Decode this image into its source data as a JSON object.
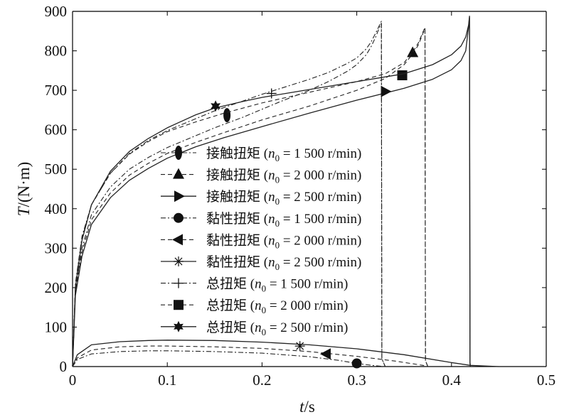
{
  "chart_data": {
    "type": "line",
    "title": "",
    "xlabel": {
      "main": "t",
      "unit": "/s"
    },
    "ylabel": {
      "main": "T",
      "unit": "/(N·m)"
    },
    "xlim": [
      0,
      0.5
    ],
    "ylim": [
      0,
      900
    ],
    "xticks": [
      0,
      0.1,
      0.2,
      0.3,
      0.4,
      0.5
    ],
    "xtick_labels": [
      "0",
      "0.1",
      "0.2",
      "0.3",
      "0.4",
      "0.5"
    ],
    "yticks": [
      0,
      100,
      200,
      300,
      400,
      500,
      600,
      700,
      800,
      900
    ],
    "ytick_labels": [
      "0",
      "100",
      "200",
      "300",
      "400",
      "500",
      "600",
      "700",
      "800",
      "900"
    ],
    "grid": false,
    "legend_position": "center",
    "series": [
      {
        "legend": {
          "prefix": "接触扭矩 (",
          "var": "n",
          "sub": "0",
          "rest": " = 1 500 r/min)"
        },
        "marker": "ellipse",
        "dash": "7 3 2 3",
        "width": 1.1,
        "color": "#222222",
        "marker_x": 0.163,
        "marker_y": 637,
        "x": [
          0,
          0.003,
          0.01,
          0.02,
          0.04,
          0.06,
          0.08,
          0.1,
          0.12,
          0.15,
          0.18,
          0.2,
          0.22,
          0.25,
          0.27,
          0.29,
          0.3,
          0.31,
          0.315,
          0.32,
          0.324,
          0.326,
          0.3265,
          0.33
        ],
        "y": [
          0,
          195,
          300,
          385,
          455,
          500,
          530,
          555,
          575,
          605,
          632,
          652,
          672,
          700,
          722,
          748,
          765,
          790,
          810,
          835,
          860,
          870,
          20,
          0
        ]
      },
      {
        "legend": {
          "prefix": "接触扭矩 (",
          "var": "n",
          "sub": "0",
          "rest": " = 2 000 r/min)"
        },
        "marker": "triangle-up",
        "dash": "6 4",
        "width": 1.1,
        "color": "#222222",
        "marker_x": 0.359,
        "marker_y": 795,
        "x": [
          0,
          0.003,
          0.01,
          0.02,
          0.04,
          0.06,
          0.08,
          0.1,
          0.13,
          0.16,
          0.2,
          0.25,
          0.3,
          0.33,
          0.35,
          0.36,
          0.365,
          0.37,
          0.372,
          0.3725,
          0.375
        ],
        "y": [
          0,
          188,
          290,
          372,
          440,
          485,
          515,
          540,
          568,
          593,
          625,
          660,
          700,
          730,
          765,
          795,
          815,
          845,
          855,
          15,
          0
        ]
      },
      {
        "legend": {
          "prefix": "接触扭矩 (",
          "var": "n",
          "sub": "0",
          "rest": " = 2 500 r/min)"
        },
        "marker": "triangle-right",
        "dash": "",
        "width": 1.3,
        "color": "#222222",
        "marker_x": 0.33,
        "marker_y": 697,
        "x": [
          0,
          0.003,
          0.01,
          0.02,
          0.04,
          0.06,
          0.08,
          0.1,
          0.13,
          0.16,
          0.2,
          0.25,
          0.3,
          0.35,
          0.38,
          0.4,
          0.41,
          0.415,
          0.418,
          0.419,
          0.4195,
          0.42
        ],
        "y": [
          0,
          180,
          280,
          360,
          428,
          472,
          502,
          528,
          557,
          580,
          608,
          642,
          675,
          705,
          728,
          752,
          775,
          800,
          860,
          885,
          10,
          0
        ]
      },
      {
        "legend": {
          "prefix": "黏性扭矩 (",
          "var": "n",
          "sub": "0",
          "rest": " = 1 500 r/min)"
        },
        "marker": "circle",
        "dash": "7 3 2 3",
        "width": 1.1,
        "color": "#222222",
        "marker_x": 0.3,
        "marker_y": 8,
        "x": [
          0,
          0.005,
          0.02,
          0.05,
          0.08,
          0.1,
          0.15,
          0.2,
          0.25,
          0.28,
          0.3,
          0.32,
          0.33
        ],
        "y": [
          0,
          18,
          32,
          38,
          40,
          40,
          38,
          34,
          25,
          16,
          8,
          2,
          0
        ]
      },
      {
        "legend": {
          "prefix": "黏性扭矩 (",
          "var": "n",
          "sub": "0",
          "rest": " = 2 000 r/min)"
        },
        "marker": "triangle-left",
        "dash": "6 4",
        "width": 1.1,
        "color": "#222222",
        "marker_x": 0.268,
        "marker_y": 32,
        "x": [
          0,
          0.005,
          0.02,
          0.05,
          0.08,
          0.1,
          0.15,
          0.2,
          0.25,
          0.3,
          0.34,
          0.37,
          0.375
        ],
        "y": [
          0,
          22,
          42,
          50,
          52,
          52,
          50,
          46,
          38,
          26,
          14,
          3,
          0
        ]
      },
      {
        "legend": {
          "prefix": "黏性扭矩 (",
          "var": "n",
          "sub": "0",
          "rest": " = 2 500 r/min)"
        },
        "marker": "asterisk",
        "dash": "",
        "width": 1.3,
        "color": "#222222",
        "marker_x": 0.24,
        "marker_y": 52,
        "x": [
          0,
          0.005,
          0.02,
          0.05,
          0.08,
          0.1,
          0.15,
          0.2,
          0.25,
          0.3,
          0.35,
          0.4,
          0.42,
          0.45
        ],
        "y": [
          0,
          30,
          55,
          63,
          66,
          67,
          66,
          62,
          55,
          45,
          30,
          10,
          3,
          0
        ]
      },
      {
        "legend": {
          "prefix": "总扭矩 (",
          "var": "n",
          "sub": "0",
          "rest": " = 1 500 r/min)"
        },
        "marker": "plus",
        "dash": "7 3 2 3",
        "width": 1.1,
        "color": "#222222",
        "marker_x": 0.21,
        "marker_y": 692,
        "x": [
          0,
          0.003,
          0.01,
          0.02,
          0.04,
          0.06,
          0.08,
          0.1,
          0.12,
          0.15,
          0.18,
          0.2,
          0.22,
          0.25,
          0.27,
          0.29,
          0.3,
          0.31,
          0.315,
          0.32,
          0.324,
          0.326,
          0.3265,
          0.33
        ],
        "y": [
          0,
          210,
          330,
          410,
          490,
          540,
          573,
          598,
          618,
          648,
          673,
          690,
          705,
          728,
          745,
          768,
          782,
          805,
          822,
          845,
          865,
          875,
          20,
          0
        ]
      },
      {
        "legend": {
          "prefix": "总扭矩 (",
          "var": "n",
          "sub": "0",
          "rest": " = 2 000 r/min)"
        },
        "marker": "square",
        "dash": "6 4",
        "width": 1.1,
        "color": "#222222",
        "marker_x": 0.348,
        "marker_y": 738,
        "x": [
          0,
          0.003,
          0.01,
          0.02,
          0.04,
          0.06,
          0.08,
          0.1,
          0.13,
          0.16,
          0.2,
          0.25,
          0.3,
          0.33,
          0.35,
          0.36,
          0.365,
          0.37,
          0.372,
          0.3725,
          0.375
        ],
        "y": [
          0,
          205,
          325,
          410,
          490,
          538,
          570,
          595,
          620,
          642,
          668,
          695,
          722,
          742,
          770,
          800,
          820,
          848,
          860,
          15,
          0
        ]
      },
      {
        "legend": {
          "prefix": "总扭矩 (",
          "var": "n",
          "sub": "0",
          "rest": " = 2 500 r/min)"
        },
        "marker": "star",
        "dash": "",
        "width": 1.3,
        "color": "#222222",
        "marker_x": 0.151,
        "marker_y": 660,
        "x": [
          0,
          0.003,
          0.01,
          0.02,
          0.04,
          0.06,
          0.08,
          0.1,
          0.13,
          0.15,
          0.18,
          0.2,
          0.25,
          0.3,
          0.35,
          0.38,
          0.4,
          0.41,
          0.415,
          0.418,
          0.419,
          0.4195,
          0.42
        ],
        "y": [
          0,
          200,
          320,
          410,
          495,
          545,
          578,
          605,
          638,
          655,
          672,
          682,
          702,
          722,
          742,
          765,
          790,
          812,
          835,
          865,
          888,
          10,
          0
        ]
      }
    ]
  }
}
